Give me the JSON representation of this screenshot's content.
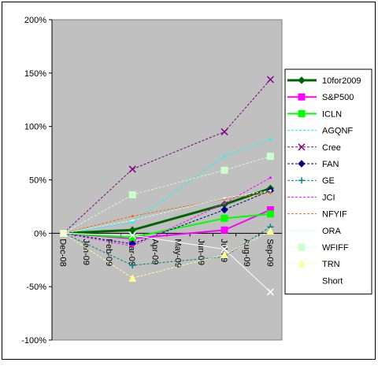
{
  "chart_data": {
    "type": "line",
    "categories": [
      "Dec-08",
      "Jan-09",
      "Feb-09",
      "Mar-09",
      "Apr-09",
      "May-09",
      "Jun-09",
      "Jul-09",
      "Aug-09",
      "Sep-09"
    ],
    "x": [
      "Dec-08",
      "Mar-09",
      "Jul-09",
      "Sep-09"
    ],
    "ylim": [
      -100,
      200
    ],
    "yticks": [
      {
        "value": -100,
        "label": "-100%"
      },
      {
        "value": -50,
        "label": "-50%"
      },
      {
        "value": 0,
        "label": "0%"
      },
      {
        "value": 50,
        "label": "50%"
      },
      {
        "value": 100,
        "label": "100%"
      },
      {
        "value": 150,
        "label": "150%"
      },
      {
        "value": 200,
        "label": "200%"
      }
    ],
    "plot_background": "#c0c0c0",
    "legend": "right",
    "series": [
      {
        "name": "10for2009",
        "color": "#006400",
        "marker": "diamond",
        "dashed": false,
        "line_width": 3,
        "values": [
          0,
          3,
          27,
          42
        ]
      },
      {
        "name": "S&P500",
        "color": "#ff00ff",
        "marker": "square",
        "dashed": false,
        "line_width": 2,
        "values": [
          0,
          -5,
          3,
          22
        ]
      },
      {
        "name": "ICLN",
        "color": "#00ff00",
        "marker": "square",
        "dashed": false,
        "line_width": 2,
        "values": [
          0,
          -4,
          14,
          18
        ]
      },
      {
        "name": "AGQNF",
        "color": "#00ffff",
        "marker": "none",
        "dashed": true,
        "line_width": 1,
        "values": [
          0,
          10,
          72,
          88
        ]
      },
      {
        "name": "Cree",
        "color": "#800080",
        "marker": "x",
        "dashed": true,
        "line_width": 1,
        "values": [
          0,
          60,
          95,
          144
        ]
      },
      {
        "name": "FAN",
        "color": "#000080",
        "marker": "diamond",
        "dashed": true,
        "line_width": 1,
        "values": [
          0,
          -10,
          22,
          40
        ]
      },
      {
        "name": "GE",
        "color": "#008080",
        "marker": "plus",
        "dashed": true,
        "line_width": 1,
        "values": [
          0,
          -30,
          -22,
          6
        ]
      },
      {
        "name": "JCI",
        "color": "#ff00ff",
        "marker": "none",
        "dashed": true,
        "line_width": 1,
        "values": [
          0,
          -12,
          28,
          52
        ]
      },
      {
        "name": "NFYIF",
        "color": "#ff6600",
        "marker": "none",
        "dashed": true,
        "line_width": 1,
        "values": [
          0,
          16,
          32,
          38
        ]
      },
      {
        "name": "ORA",
        "color": "#ccffff",
        "marker": "none",
        "dashed": true,
        "line_width": 1,
        "values": [
          0,
          12,
          33,
          40
        ]
      },
      {
        "name": "WFIFF",
        "color": "#ccffcc",
        "marker": "square",
        "dashed": true,
        "line_width": 1,
        "values": [
          0,
          36,
          59,
          72
        ]
      },
      {
        "name": "TRN",
        "color": "#ffff99",
        "marker": "triangle",
        "dashed": true,
        "line_width": 1,
        "values": [
          0,
          -42,
          -20,
          2
        ]
      },
      {
        "name": "Short",
        "color": "#ffffff",
        "marker": "x",
        "dashed": false,
        "line_width": 1,
        "values": [
          0,
          -2,
          -15,
          -55
        ]
      }
    ]
  }
}
